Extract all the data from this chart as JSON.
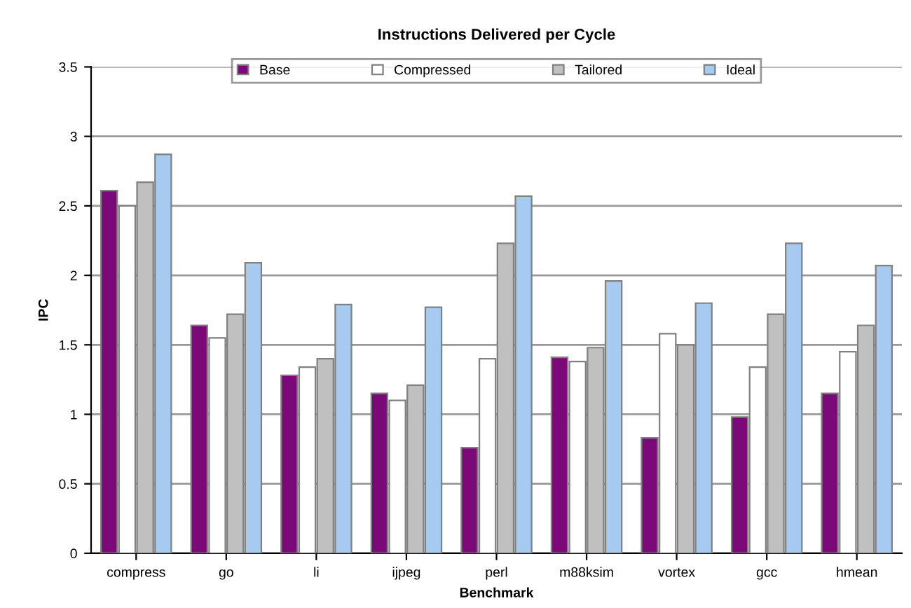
{
  "chart_data": {
    "type": "bar",
    "title": "Instructions Delivered per Cycle",
    "xlabel": "Benchmark",
    "ylabel": "IPC",
    "categories": [
      "compress",
      "go",
      "li",
      "ijpeg",
      "perl",
      "m88ksim",
      "vortex",
      "gcc",
      "hmean"
    ],
    "series": [
      {
        "name": "Base",
        "color": "#7b0a78",
        "values": [
          2.61,
          1.64,
          1.28,
          1.15,
          0.76,
          1.41,
          0.83,
          0.98,
          1.15
        ]
      },
      {
        "name": "Compressed",
        "color": "#ffffff",
        "values": [
          2.5,
          1.55,
          1.34,
          1.1,
          1.4,
          1.38,
          1.58,
          1.34,
          1.45
        ]
      },
      {
        "name": "Tailored",
        "color": "#c0c0c0",
        "values": [
          2.67,
          1.72,
          1.4,
          1.21,
          2.23,
          1.48,
          1.5,
          1.72,
          1.64
        ]
      },
      {
        "name": "Ideal",
        "color": "#a6caf0",
        "values": [
          2.87,
          2.09,
          1.79,
          1.77,
          2.57,
          1.96,
          1.8,
          2.23,
          2.07
        ]
      }
    ],
    "ylim": [
      0,
      3.5
    ],
    "yticks": [
      0,
      0.5,
      1,
      1.5,
      2,
      2.5,
      3,
      3.5
    ],
    "grid": "y",
    "legend": "top"
  }
}
